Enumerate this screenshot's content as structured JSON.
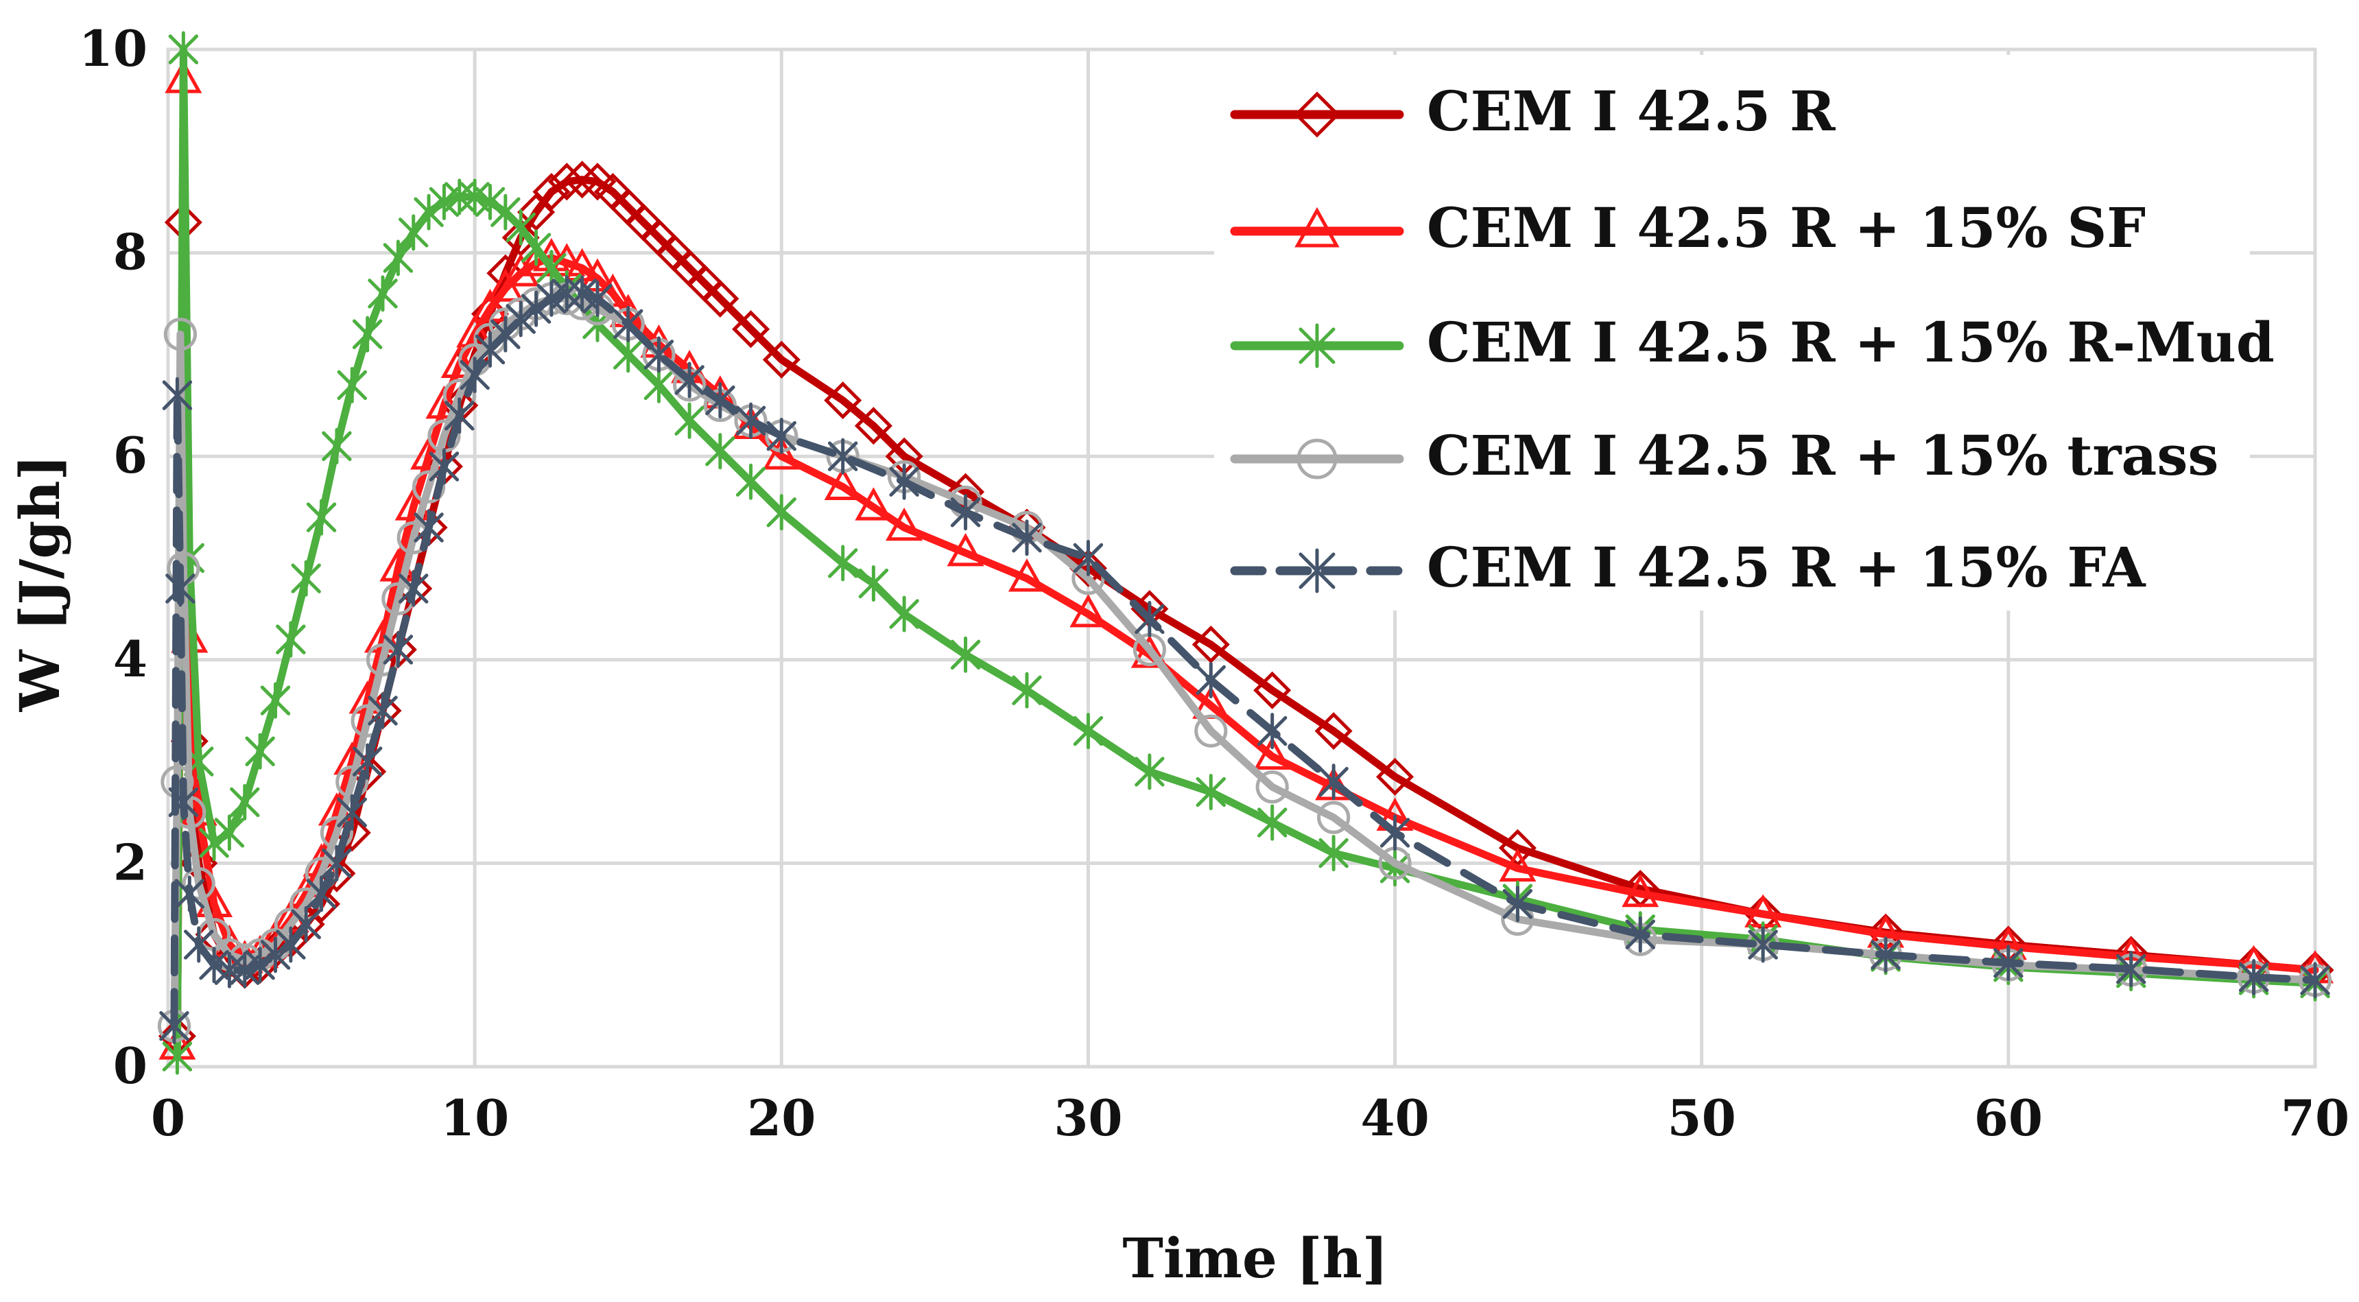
{
  "chart_data": {
    "type": "line",
    "title": "",
    "xlabel": "Time [h]",
    "ylabel": "W [J/gh]",
    "xlim": [
      0,
      70
    ],
    "ylim": [
      0,
      10
    ],
    "xticks": [
      "0",
      "10",
      "20",
      "30",
      "40",
      "50",
      "60",
      "70"
    ],
    "yticks": [
      "0",
      "2",
      "4",
      "6",
      "8",
      "10"
    ],
    "grid": true,
    "legend_position": "top-right",
    "series": [
      {
        "name": "CEM I 42.5 R",
        "color": "#C00000",
        "marker": "diamond",
        "dash": "solid",
        "x": [
          0.3,
          0.5,
          0.7,
          1.0,
          1.5,
          2,
          2.5,
          3,
          3.5,
          4,
          4.5,
          5,
          5.5,
          6,
          6.5,
          7,
          7.5,
          8,
          8.5,
          9,
          9.5,
          10,
          10.5,
          11,
          11.5,
          12,
          12.5,
          13,
          13.5,
          14,
          14.5,
          15,
          15.5,
          16,
          16.5,
          17,
          17.5,
          18,
          19,
          20,
          22,
          23,
          24,
          26,
          28,
          30,
          32,
          34,
          36,
          38,
          40,
          44,
          48,
          52,
          56,
          60,
          64,
          68,
          70
        ],
        "y": [
          0.3,
          8.3,
          3.2,
          2.0,
          1.3,
          1.05,
          0.95,
          1.0,
          1.15,
          1.25,
          1.4,
          1.6,
          1.9,
          2.3,
          2.9,
          3.5,
          4.1,
          4.7,
          5.3,
          5.9,
          6.5,
          7.0,
          7.4,
          7.8,
          8.15,
          8.4,
          8.6,
          8.7,
          8.72,
          8.7,
          8.6,
          8.45,
          8.3,
          8.15,
          8.0,
          7.85,
          7.7,
          7.55,
          7.25,
          6.95,
          6.55,
          6.3,
          6.0,
          5.65,
          5.3,
          4.9,
          4.5,
          4.15,
          3.7,
          3.3,
          2.85,
          2.15,
          1.75,
          1.5,
          1.32,
          1.2,
          1.1,
          1.0,
          0.95
        ]
      },
      {
        "name": "CEM I 42.5 R + 15% SF",
        "color": "#FF1A1A",
        "marker": "triangle",
        "dash": "solid",
        "x": [
          0.3,
          0.5,
          0.7,
          1.0,
          1.5,
          2,
          2.5,
          3,
          3.5,
          4,
          4.5,
          5,
          5.5,
          6,
          6.5,
          7,
          7.5,
          8,
          8.5,
          9,
          9.5,
          10,
          10.5,
          11,
          11.5,
          12,
          12.5,
          13,
          13.5,
          14,
          14.5,
          15,
          16,
          17,
          18,
          19,
          20,
          22,
          23,
          24,
          26,
          28,
          30,
          32,
          34,
          36,
          38,
          40,
          44,
          48,
          52,
          56,
          60,
          64,
          68,
          70
        ],
        "y": [
          0.2,
          9.7,
          4.2,
          2.5,
          1.6,
          1.2,
          1.05,
          1.1,
          1.25,
          1.45,
          1.7,
          2.0,
          2.5,
          3.0,
          3.6,
          4.2,
          4.9,
          5.5,
          6.0,
          6.5,
          6.9,
          7.2,
          7.45,
          7.65,
          7.8,
          7.9,
          7.95,
          7.9,
          7.85,
          7.75,
          7.6,
          7.4,
          7.1,
          6.85,
          6.6,
          6.3,
          6.0,
          5.7,
          5.5,
          5.3,
          5.05,
          4.8,
          4.45,
          4.05,
          3.55,
          3.05,
          2.75,
          2.45,
          1.95,
          1.7,
          1.5,
          1.3,
          1.18,
          1.08,
          1.0,
          0.95
        ]
      },
      {
        "name": "CEM I 42.5 R + 15% R-Mud",
        "color": "#4CAF3F",
        "marker": "asterisk",
        "dash": "solid",
        "x": [
          0.3,
          0.5,
          0.7,
          1.0,
          1.5,
          2,
          2.5,
          3,
          3.5,
          4,
          4.5,
          5,
          5.5,
          6,
          6.5,
          7,
          7.5,
          8,
          8.5,
          9,
          9.5,
          10,
          10.5,
          11,
          11.5,
          12,
          12.5,
          13,
          14,
          15,
          16,
          17,
          18,
          19,
          20,
          22,
          23,
          24,
          26,
          28,
          30,
          32,
          34,
          36,
          38,
          40,
          44,
          48,
          52,
          56,
          60,
          64,
          68,
          70
        ],
        "y": [
          0.1,
          10.0,
          5.0,
          3.0,
          2.2,
          2.3,
          2.6,
          3.1,
          3.6,
          4.2,
          4.8,
          5.4,
          6.1,
          6.7,
          7.2,
          7.6,
          7.95,
          8.2,
          8.4,
          8.5,
          8.55,
          8.55,
          8.5,
          8.4,
          8.25,
          8.05,
          7.85,
          7.65,
          7.3,
          7.0,
          6.7,
          6.35,
          6.05,
          5.75,
          5.45,
          4.95,
          4.75,
          4.45,
          4.05,
          3.7,
          3.3,
          2.9,
          2.7,
          2.4,
          2.1,
          1.95,
          1.65,
          1.35,
          1.25,
          1.08,
          0.98,
          0.92,
          0.85,
          0.82
        ]
      },
      {
        "name": "CEM I 42.5 R + 15% trass",
        "color": "#AAAAAA",
        "marker": "circle",
        "dash": "solid",
        "x": [
          0.2,
          0.3,
          0.4,
          0.5,
          0.7,
          1.0,
          1.5,
          2,
          2.5,
          3,
          3.5,
          4,
          4.5,
          5,
          5.5,
          6,
          6.5,
          7,
          7.5,
          8,
          8.5,
          9,
          9.5,
          10,
          10.5,
          11,
          11.5,
          12,
          12.5,
          13,
          13.5,
          14,
          15,
          16,
          17,
          18,
          19,
          20,
          22,
          24,
          26,
          28,
          30,
          32,
          34,
          36,
          38,
          40,
          44,
          48,
          52,
          56,
          60,
          64,
          68,
          70
        ],
        "y": [
          0.4,
          2.8,
          7.2,
          4.9,
          2.5,
          1.8,
          1.3,
          1.1,
          1.05,
          1.1,
          1.2,
          1.4,
          1.6,
          1.9,
          2.3,
          2.8,
          3.4,
          4.0,
          4.6,
          5.2,
          5.7,
          6.2,
          6.6,
          6.95,
          7.15,
          7.3,
          7.4,
          7.5,
          7.55,
          7.55,
          7.5,
          7.45,
          7.3,
          7.0,
          6.7,
          6.5,
          6.35,
          6.2,
          6.0,
          5.8,
          5.55,
          5.3,
          4.8,
          4.1,
          3.3,
          2.75,
          2.45,
          2.0,
          1.45,
          1.25,
          1.2,
          1.1,
          1.0,
          0.95,
          0.88,
          0.85
        ]
      },
      {
        "name": "CEM I 42.5 R + 15% FA",
        "color": "#44546A",
        "marker": "asterisk",
        "dash": "dash",
        "x": [
          0.2,
          0.3,
          0.4,
          0.5,
          0.7,
          1.0,
          1.5,
          2,
          2.5,
          3,
          3.5,
          4,
          4.5,
          5,
          5.5,
          6,
          6.5,
          7,
          7.5,
          8,
          8.5,
          9,
          9.5,
          10,
          10.5,
          11,
          11.5,
          12,
          12.5,
          13,
          13.5,
          14,
          15,
          16,
          17,
          18,
          19,
          20,
          22,
          24,
          26,
          28,
          30,
          32,
          34,
          36,
          38,
          40,
          44,
          48,
          52,
          56,
          60,
          64,
          68,
          70
        ],
        "y": [
          0.4,
          6.6,
          4.7,
          2.6,
          1.7,
          1.2,
          1.0,
          0.95,
          0.95,
          1.0,
          1.1,
          1.2,
          1.4,
          1.7,
          2.0,
          2.5,
          3.0,
          3.5,
          4.1,
          4.7,
          5.3,
          5.9,
          6.4,
          6.8,
          7.05,
          7.2,
          7.35,
          7.45,
          7.55,
          7.6,
          7.6,
          7.55,
          7.3,
          7.0,
          6.75,
          6.55,
          6.35,
          6.2,
          6.0,
          5.75,
          5.45,
          5.2,
          5.0,
          4.4,
          3.8,
          3.3,
          2.8,
          2.3,
          1.6,
          1.3,
          1.2,
          1.1,
          1.02,
          0.96,
          0.88,
          0.85
        ]
      }
    ]
  }
}
